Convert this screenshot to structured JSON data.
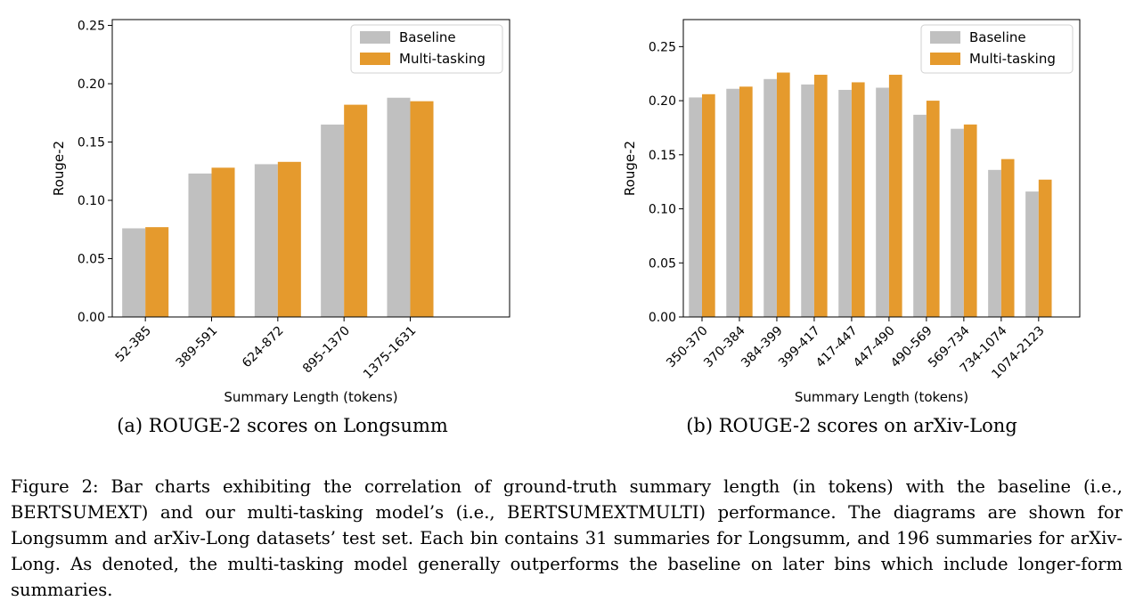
{
  "caption": "Figure 2: Bar charts exhibiting the correlation of ground-truth summary length (in tokens) with the baseline (i.e., BERTSUMEXT) and our multi-tasking model’s (i.e., BERTSUMEXTMULTI) performance. The diagrams are shown for Longsumm and arXiv-Long datasets’ test set. Each bin contains 31 summaries for Longsumm, and 196 summaries for arXiv-Long. As denoted, the multi-tasking model generally outperforms the baseline on later bins which include longer-form summaries.",
  "colors": {
    "baseline": "#c0c0c0",
    "multi": "#e59a2d"
  },
  "chart_data": [
    {
      "type": "bar",
      "subcaption": "(a) ROUGE-2 scores on Longsumm",
      "xlabel": "Summary Length (tokens)",
      "ylabel": "Rouge-2",
      "ylim": [
        0,
        0.255
      ],
      "yticks": [
        "0.00",
        "0.05",
        "0.10",
        "0.15",
        "0.20",
        "0.25"
      ],
      "legend_position": "top-right",
      "categories": [
        "52-385",
        "389-591",
        "624-872",
        "895-1370",
        "1375-1631"
      ],
      "series": [
        {
          "name": "Baseline",
          "values": [
            0.076,
            0.123,
            0.131,
            0.165,
            0.188
          ]
        },
        {
          "name": "Multi-tasking",
          "values": [
            0.077,
            0.128,
            0.133,
            0.182,
            0.185
          ]
        }
      ]
    },
    {
      "type": "bar",
      "subcaption": "(b) ROUGE-2 scores on arXiv-Long",
      "xlabel": "Summary Length (tokens)",
      "ylabel": "Rouge-2",
      "ylim": [
        0,
        0.275
      ],
      "yticks": [
        "0.00",
        "0.05",
        "0.10",
        "0.15",
        "0.20",
        "0.25"
      ],
      "legend_position": "top-right",
      "categories": [
        "350-370",
        "370-384",
        "384-399",
        "399-417",
        "417-447",
        "447-490",
        "490-569",
        "569-734",
        "734-1074",
        "1074-2123"
      ],
      "series": [
        {
          "name": "Baseline",
          "values": [
            0.203,
            0.211,
            0.22,
            0.215,
            0.21,
            0.212,
            0.187,
            0.174,
            0.136,
            0.116
          ]
        },
        {
          "name": "Multi-tasking",
          "values": [
            0.206,
            0.213,
            0.226,
            0.224,
            0.217,
            0.224,
            0.2,
            0.178,
            0.146,
            0.127
          ]
        }
      ]
    }
  ]
}
